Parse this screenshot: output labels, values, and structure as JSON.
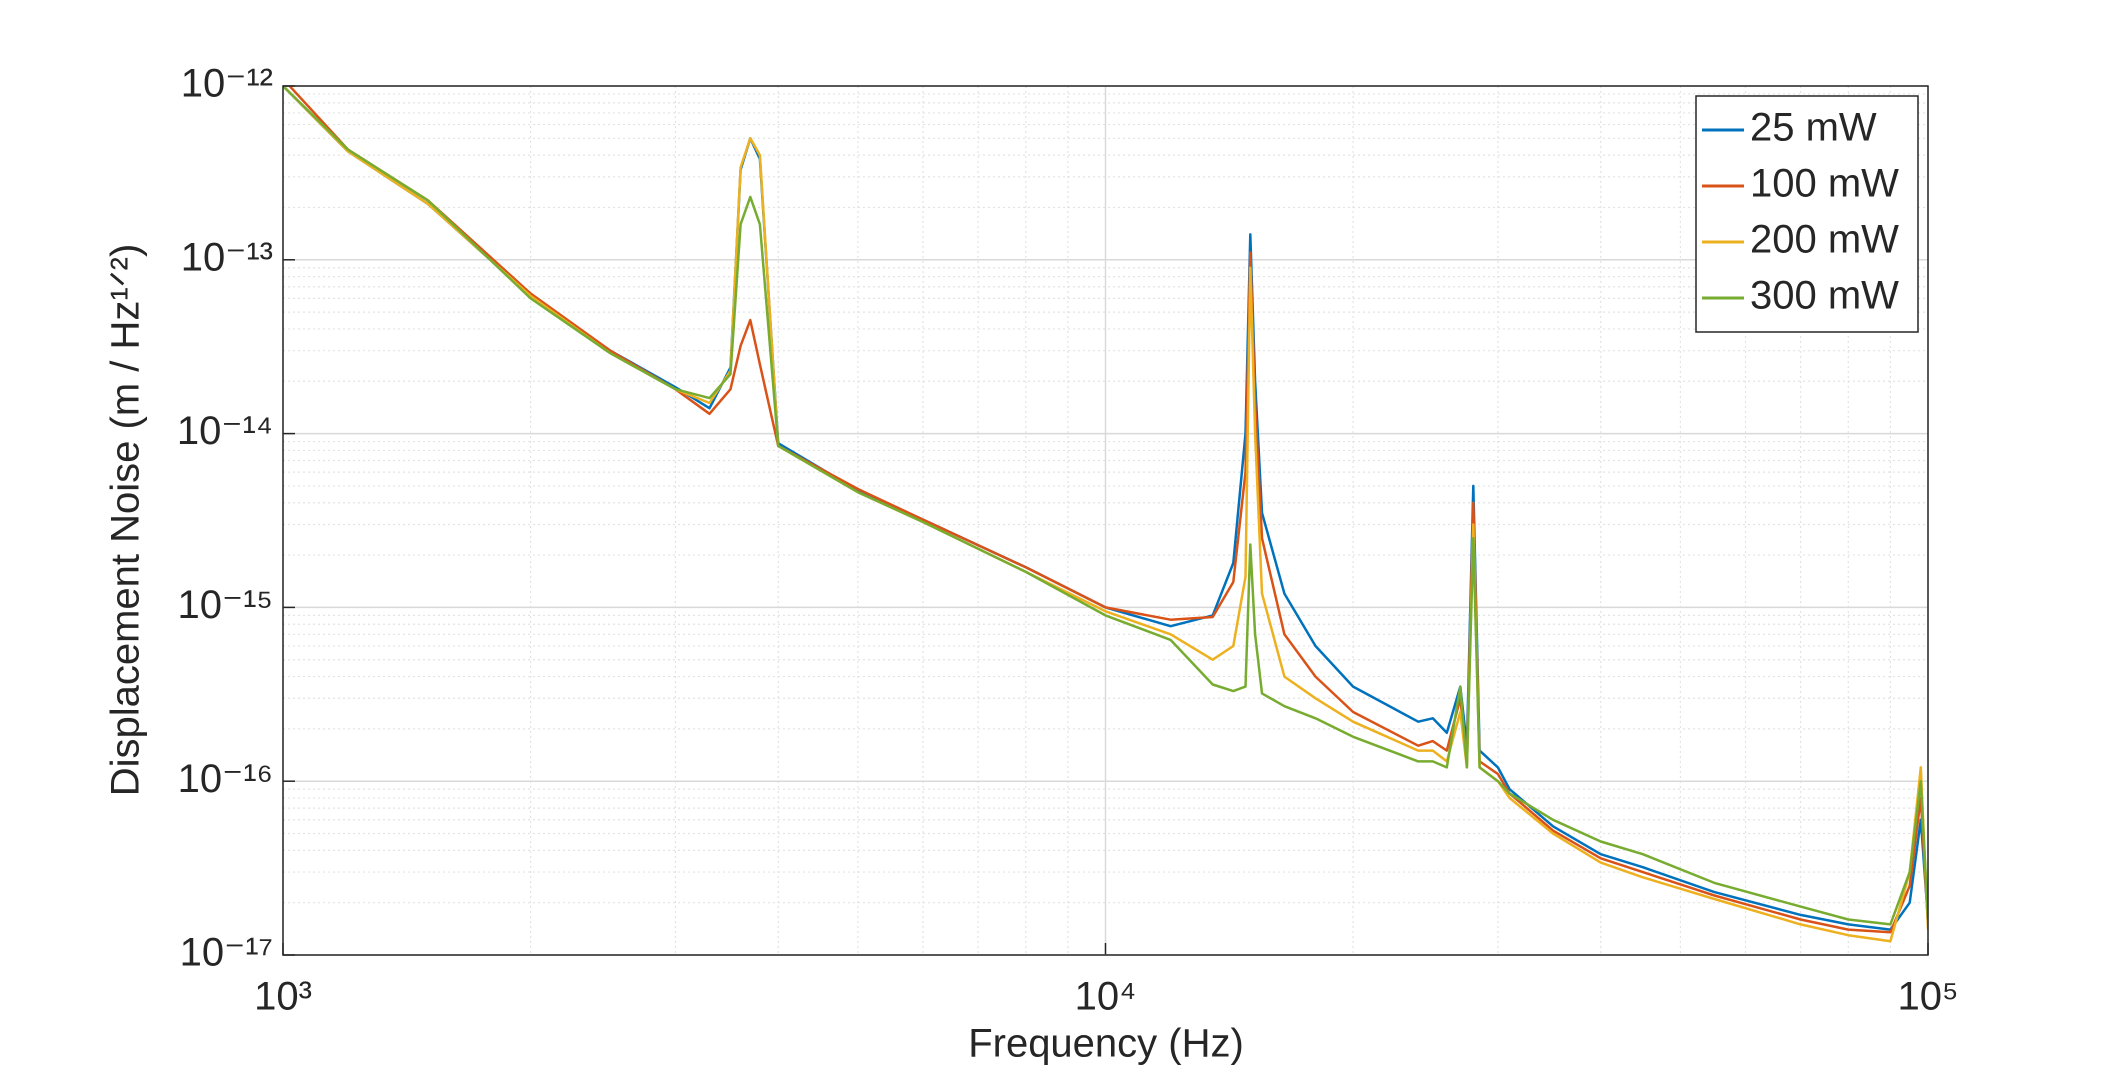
{
  "chart_data": {
    "type": "line",
    "x_label": "Frequency (Hz)",
    "y_label": "Displacement Noise (m / Hz¹ᐟ²)",
    "log_x": true,
    "log_y": true,
    "grid": true,
    "minor_grid": true,
    "legend": "upper right",
    "xlim": [
      1000,
      100000
    ],
    "xticks": [
      {
        "value": 1000,
        "label": "10³"
      },
      {
        "value": 10000,
        "label": "10⁴"
      },
      {
        "value": 100000,
        "label": "10⁵"
      }
    ],
    "ylim": [
      1e-17,
      1e-12
    ],
    "yticks": [
      {
        "value": 1e-17,
        "label": "10⁻¹⁷"
      },
      {
        "value": 1e-16,
        "label": "10⁻¹⁶"
      },
      {
        "value": 1e-15,
        "label": "10⁻¹⁵"
      },
      {
        "value": 1e-14,
        "label": "10⁻¹⁴"
      },
      {
        "value": 1e-13,
        "label": "10⁻¹³"
      },
      {
        "value": 1e-12,
        "label": "10⁻¹²"
      }
    ],
    "x": [
      1000,
      1200,
      1500,
      2000,
      2500,
      3000,
      3300,
      3500,
      3600,
      3700,
      3800,
      4000,
      5000,
      6000,
      8000,
      10000,
      12000,
      13500,
      14300,
      14800,
      15000,
      15200,
      15500,
      16500,
      18000,
      20000,
      24000,
      25000,
      26000,
      27000,
      27500,
      28000,
      28500,
      30000,
      31000,
      35000,
      40000,
      45000,
      55000,
      70000,
      80000,
      90000,
      95000,
      98000,
      100000
    ],
    "series": [
      {
        "name": "25 mW",
        "color": "#0072bd",
        "values": [
          1e-12,
          4.2e-13,
          2.1e-13,
          6.2e-14,
          3e-14,
          1.85e-14,
          1.4e-14,
          2.4e-14,
          3.3e-13,
          5e-13,
          3.8e-13,
          8.8e-15,
          4.7e-15,
          3.2e-15,
          1.7e-15,
          1e-15,
          7.8e-16,
          9e-16,
          1.8e-15,
          1e-14,
          1.4e-13,
          2e-14,
          3.5e-15,
          1.2e-15,
          6e-16,
          3.5e-16,
          2.2e-16,
          2.3e-16,
          1.9e-16,
          3.5e-16,
          1.6e-16,
          5e-15,
          1.5e-16,
          1.2e-16,
          9e-17,
          5.5e-17,
          3.8e-17,
          3.2e-17,
          2.3e-17,
          1.7e-17,
          1.5e-17,
          1.4e-17,
          2e-17,
          6e-17,
          1.6e-17
        ]
      },
      {
        "name": "100 mW",
        "color": "#d95319",
        "values": [
          1.1e-12,
          4.3e-13,
          2.2e-13,
          6.4e-14,
          3e-14,
          1.8e-14,
          1.3e-14,
          1.8e-14,
          3.2e-14,
          4.5e-14,
          2.5e-14,
          8.5e-15,
          4.8e-15,
          3.2e-15,
          1.7e-15,
          1e-15,
          8.5e-16,
          8.8e-16,
          1.4e-15,
          6e-15,
          1.1e-13,
          1.5e-14,
          2.5e-15,
          7e-16,
          4e-16,
          2.5e-16,
          1.6e-16,
          1.7e-16,
          1.5e-16,
          3e-16,
          1.3e-16,
          4e-15,
          1.3e-16,
          1.1e-16,
          8.5e-17,
          5.2e-17,
          3.6e-17,
          3e-17,
          2.2e-17,
          1.6e-17,
          1.4e-17,
          1.35e-17,
          2.5e-17,
          8e-17,
          1.5e-17
        ]
      },
      {
        "name": "200 mW",
        "color": "#edb120",
        "values": [
          1e-12,
          4.2e-13,
          2.1e-13,
          6.2e-14,
          2.9e-14,
          1.8e-14,
          1.5e-14,
          2.3e-14,
          3.4e-13,
          5e-13,
          4e-13,
          8.5e-15,
          4.6e-15,
          3.1e-15,
          1.6e-15,
          9.5e-16,
          7e-16,
          5e-16,
          6e-16,
          1.5e-15,
          9e-14,
          1e-14,
          1.2e-15,
          4e-16,
          3e-16,
          2.2e-16,
          1.5e-16,
          1.5e-16,
          1.3e-16,
          2.5e-16,
          1.2e-16,
          3e-15,
          1.2e-16,
          1e-16,
          8e-17,
          5e-17,
          3.4e-17,
          2.8e-17,
          2.1e-17,
          1.5e-17,
          1.3e-17,
          1.2e-17,
          3e-17,
          1.2e-16,
          1.4e-17
        ]
      },
      {
        "name": "300 mW",
        "color": "#77ac30",
        "values": [
          1e-12,
          4.3e-13,
          2.2e-13,
          6e-14,
          2.9e-14,
          1.8e-14,
          1.6e-14,
          2.2e-14,
          1.6e-13,
          2.3e-13,
          1.6e-13,
          8.5e-15,
          4.6e-15,
          3.1e-15,
          1.6e-15,
          9e-16,
          6.5e-16,
          3.6e-16,
          3.3e-16,
          3.5e-16,
          2.3e-15,
          7e-16,
          3.2e-16,
          2.7e-16,
          2.3e-16,
          1.8e-16,
          1.3e-16,
          1.3e-16,
          1.2e-16,
          3.5e-16,
          1.2e-16,
          2.5e-15,
          1.2e-16,
          1e-16,
          8.5e-17,
          6e-17,
          4.5e-17,
          3.8e-17,
          2.6e-17,
          1.9e-17,
          1.6e-17,
          1.5e-17,
          3e-17,
          1e-16,
          1.6e-17
        ]
      }
    ]
  }
}
